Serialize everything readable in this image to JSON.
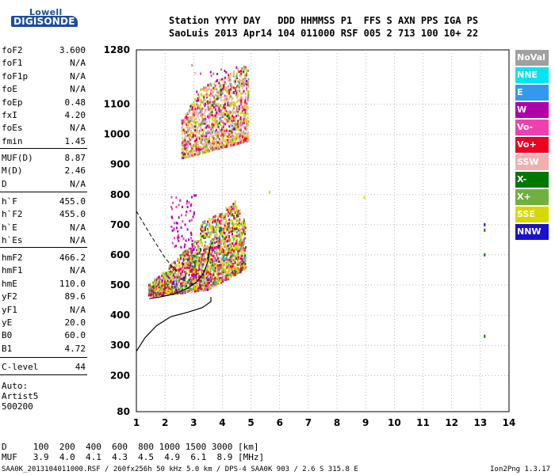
{
  "logo": {
    "line1": "Lowell",
    "line2": "DIGISONDE"
  },
  "header": {
    "line1": "Station YYYY DAY   DDD HHMMSS P1  FFS S AXN PPS IGA PS",
    "line2": "SaoLuis 2013 Apr14 104 011000 RSF 005 2 713 100 10+ 22"
  },
  "params_group1": [
    {
      "name": "foF2",
      "value": "3.600"
    },
    {
      "name": "foF1",
      "value": "N/A"
    },
    {
      "name": "foF1p",
      "value": "N/A"
    },
    {
      "name": "foE",
      "value": "N/A"
    },
    {
      "name": "foEp",
      "value": "0.48"
    },
    {
      "name": "fxI",
      "value": "4.20"
    },
    {
      "name": "foEs",
      "value": "N/A"
    },
    {
      "name": "fmin",
      "value": "1.45"
    }
  ],
  "params_group2": [
    {
      "name": "MUF(D)",
      "value": "8.87"
    },
    {
      "name": "M(D)",
      "value": "2.46"
    },
    {
      "name": "D",
      "value": "N/A"
    }
  ],
  "params_group3": [
    {
      "name": "h`F",
      "value": "455.0"
    },
    {
      "name": "h`F2",
      "value": "455.0"
    },
    {
      "name": "h`E",
      "value": "N/A"
    },
    {
      "name": "h`Es",
      "value": "N/A"
    }
  ],
  "params_group4": [
    {
      "name": "hmF2",
      "value": "466.2"
    },
    {
      "name": "hmF1",
      "value": "N/A"
    },
    {
      "name": "hmE",
      "value": "110.0"
    },
    {
      "name": "yF2",
      "value": "89.6"
    },
    {
      "name": "yF1",
      "value": "N/A"
    },
    {
      "name": "yE",
      "value": "20.0"
    },
    {
      "name": "B0",
      "value": "60.0"
    },
    {
      "name": "B1",
      "value": "4.72"
    }
  ],
  "params_group5": [
    {
      "name": "C-level",
      "value": "44"
    }
  ],
  "footer_info": [
    "Auto:",
    "Artist5",
    "500200"
  ],
  "legend": [
    {
      "label": "NoVal",
      "color": "#a0a0a0"
    },
    {
      "label": "NNE",
      "color": "#00e5f0"
    },
    {
      "label": "E",
      "color": "#3399ee"
    },
    {
      "label": "W",
      "color": "#b000a8"
    },
    {
      "label": "Vo-",
      "color": "#f040b0"
    },
    {
      "label": "Vo+",
      "color": "#ee0022"
    },
    {
      "label": "SSW",
      "color": "#f0b0b0"
    },
    {
      "label": "X-",
      "color": "#007700"
    },
    {
      "label": "X+",
      "color": "#70b040"
    },
    {
      "label": "SSE",
      "color": "#d8d800"
    },
    {
      "label": "NNW",
      "color": "#1a10d0"
    }
  ],
  "dm_table": {
    "line1": "D     100  200  400  600  800 1000 1500 3000 [km]",
    "line2": "MUF   3.9  4.0  4.1  4.3  4.5  4.9  6.1  8.9 [MHz]"
  },
  "bottom_line": "SAA0K_2013104011000.RSF / 260fx256h 50 kHz 5.0 km / DPS-4 SAA0K 903 / 2.6 S 315.8 E",
  "version": "Ion2Png 1.3.17",
  "chart_data": {
    "type": "scatter",
    "title": "",
    "xlabel": "",
    "ylabel": "",
    "xlim": [
      1,
      14
    ],
    "ylim": [
      80,
      1280
    ],
    "x_ticks": [
      1,
      2,
      3,
      4,
      5,
      6,
      7,
      8,
      9,
      10,
      11,
      12,
      13,
      14
    ],
    "y_ticks": [
      80,
      200,
      300,
      400,
      500,
      600,
      700,
      800,
      900,
      1000,
      1100,
      1280
    ],
    "grid": true,
    "trace_clusters": [
      {
        "name": "F2 trace",
        "x_range": [
          1.5,
          4.8
        ],
        "y_range": [
          460,
          790
        ]
      },
      {
        "name": "F2 multihop trace",
        "x_range": [
          2.6,
          4.9
        ],
        "y_range": [
          920,
          1240
        ]
      }
    ],
    "profile_curve": [
      [
        1,
        280
      ],
      [
        1.3,
        325
      ],
      [
        1.7,
        365
      ],
      [
        2.2,
        395
      ],
      [
        2.8,
        410
      ],
      [
        3.3,
        425
      ],
      [
        3.6,
        445
      ],
      [
        3.6,
        460
      ]
    ],
    "virtual_trace_curve": [
      [
        1.45,
        455
      ],
      [
        1.8,
        460
      ],
      [
        2.3,
        470
      ],
      [
        2.8,
        490
      ],
      [
        3.1,
        510
      ],
      [
        3.35,
        540
      ],
      [
        3.5,
        580
      ],
      [
        3.58,
        630
      ]
    ],
    "dashed_curve": [
      [
        1,
        745
      ],
      [
        1.5,
        665
      ],
      [
        2.0,
        590
      ],
      [
        2.4,
        545
      ]
    ],
    "isolated_points": [
      {
        "x": 5.65,
        "y": 808,
        "color": "#d8d800"
      },
      {
        "x": 8.95,
        "y": 790,
        "color": "#d8d800"
      },
      {
        "x": 13.15,
        "y": 700,
        "color": "#1a10d0"
      },
      {
        "x": 13.15,
        "y": 682,
        "color": "#007700"
      },
      {
        "x": 13.15,
        "y": 600,
        "color": "#007700"
      },
      {
        "x": 13.15,
        "y": 330,
        "color": "#007700"
      }
    ]
  }
}
